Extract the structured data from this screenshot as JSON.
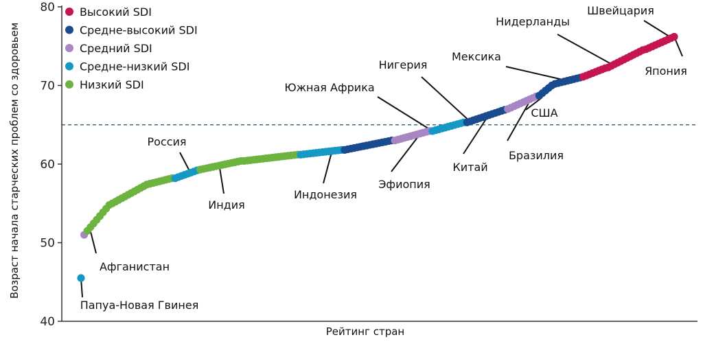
{
  "chart_data": {
    "type": "scatter",
    "title": "",
    "xlabel": "Рейтинг стран",
    "ylabel": "Возраст начала старческих проблем со здоровьем",
    "ylim": [
      40,
      80
    ],
    "yticks": [
      40,
      50,
      60,
      70,
      80
    ],
    "reference_line": {
      "y": 65,
      "style": "dashed"
    },
    "legend": {
      "placement": "top-left",
      "entries": [
        {
          "key": "high",
          "label": "Высокий SDI",
          "color": "#c5154f"
        },
        {
          "key": "mid_high",
          "label": "Средне-высокий SDI",
          "color": "#1a4b8f"
        },
        {
          "key": "mid",
          "label": "Средний SDI",
          "color": "#a886c4"
        },
        {
          "key": "mid_low",
          "label": "Средне-низкий SDI",
          "color": "#1598c3"
        },
        {
          "key": "low",
          "label": "Низкий SDI",
          "color": "#6db33f"
        }
      ]
    },
    "x_range": [
      1,
      190
    ],
    "segments": [
      {
        "x": [
          1,
          1
        ],
        "y": [
          45.5,
          45.5
        ],
        "group": "mid_low"
      },
      {
        "x": [
          2,
          2
        ],
        "y": [
          51.0,
          51.0
        ],
        "group": "mid"
      },
      {
        "x": [
          3,
          10
        ],
        "y": [
          51.5,
          54.8
        ],
        "group": "low"
      },
      {
        "x": [
          11,
          22
        ],
        "y": [
          55.0,
          57.4
        ],
        "group": "low"
      },
      {
        "x": [
          23,
          30
        ],
        "y": [
          57.5,
          58.2
        ],
        "group": "low"
      },
      {
        "x": [
          31,
          38
        ],
        "y": [
          58.2,
          59.2
        ],
        "group": "mid_low"
      },
      {
        "x": [
          39,
          52
        ],
        "y": [
          59.3,
          60.4
        ],
        "group": "low"
      },
      {
        "x": [
          53,
          70
        ],
        "y": [
          60.4,
          61.2
        ],
        "group": "low"
      },
      {
        "x": [
          71,
          84
        ],
        "y": [
          61.2,
          61.8
        ],
        "group": "mid_low"
      },
      {
        "x": [
          85,
          100
        ],
        "y": [
          61.8,
          63.0
        ],
        "group": "mid_high"
      },
      {
        "x": [
          101,
          112
        ],
        "y": [
          63.0,
          64.2
        ],
        "group": "mid"
      },
      {
        "x": [
          113,
          123
        ],
        "y": [
          64.2,
          65.3
        ],
        "group": "mid_low"
      },
      {
        "x": [
          124,
          136
        ],
        "y": [
          65.3,
          66.9
        ],
        "group": "mid_high"
      },
      {
        "x": [
          137,
          146
        ],
        "y": [
          67.0,
          68.6
        ],
        "group": "mid"
      },
      {
        "x": [
          147,
          151
        ],
        "y": [
          68.7,
          70.0
        ],
        "group": "mid_high"
      },
      {
        "x": [
          152,
          160
        ],
        "y": [
          70.2,
          71.0
        ],
        "group": "mid_high"
      },
      {
        "x": [
          161,
          168
        ],
        "y": [
          71.1,
          72.2
        ],
        "group": "high"
      },
      {
        "x": [
          169,
          180
        ],
        "y": [
          72.3,
          74.5
        ],
        "group": "high"
      },
      {
        "x": [
          181,
          190
        ],
        "y": [
          74.6,
          76.2
        ],
        "group": "high"
      }
    ],
    "annotations": [
      {
        "label": "Папуа-Новая Гвинея",
        "x": 1,
        "y": 45.5
      },
      {
        "label": "Афганистан",
        "x": 4,
        "y": 51.5
      },
      {
        "label": "Россия",
        "x": 36,
        "y": 58.8
      },
      {
        "label": "Индия",
        "x": 45,
        "y": 60.0
      },
      {
        "label": "Индонезия",
        "x": 81,
        "y": 61.7
      },
      {
        "label": "Южная Африка",
        "x": 113,
        "y": 64.2
      },
      {
        "label": "Эфиопия",
        "x": 109,
        "y": 63.8
      },
      {
        "label": "Нигерия",
        "x": 125,
        "y": 65.4
      },
      {
        "label": "Китай",
        "x": 131,
        "y": 66.3
      },
      {
        "label": "Бразилия",
        "x": 144,
        "y": 68.0
      },
      {
        "label": "Мексика",
        "x": 156,
        "y": 70.6
      },
      {
        "label": "США",
        "x": 148,
        "y": 68.5
      },
      {
        "label": "Нидерланды",
        "x": 171,
        "y": 72.5
      },
      {
        "label": "Швейцария",
        "x": 189,
        "y": 76.1
      },
      {
        "label": "Япония",
        "x": 190,
        "y": 76.2
      }
    ]
  }
}
